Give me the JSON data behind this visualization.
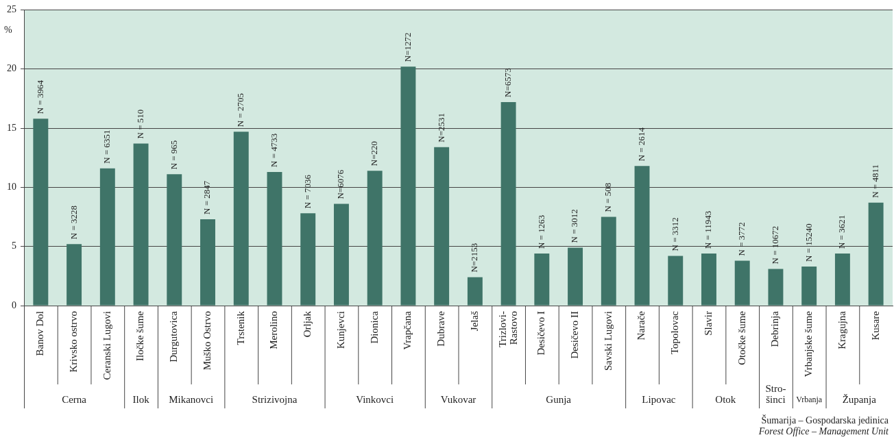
{
  "chart_data": {
    "type": "bar",
    "categories": [
      "Banov Dol",
      "Krivsko ostrvo",
      "Ceranski Lugovi",
      "Iločke šume",
      "Durgutovica",
      "Muško Ostrvo",
      "Trstenik",
      "Merolino",
      "Orljak",
      "Kunjevci",
      "Dionica",
      "Vrapčana",
      "Dubrave",
      "Jelaš",
      "Trizlovi-\nRastovo",
      "Desičevo I",
      "Desičevo II",
      "Savski Lugovi",
      "Narače",
      "Topolovac",
      "Slavir",
      "Otočke šume",
      "Debrinja",
      "Vrbanjske šume",
      "Kragujna",
      "Kusare"
    ],
    "values": [
      15.8,
      5.2,
      11.6,
      13.7,
      11.1,
      7.3,
      14.7,
      11.3,
      7.8,
      8.6,
      11.4,
      20.2,
      13.4,
      2.4,
      17.2,
      4.4,
      4.9,
      7.5,
      11.8,
      4.2,
      4.4,
      3.8,
      3.1,
      3.3,
      4.4,
      8.7
    ],
    "color": "#3f7468",
    "ylim": [
      0,
      25
    ],
    "yticks": [
      0,
      5,
      10,
      15,
      20,
      25
    ],
    "grid": "y",
    "legend": false,
    "ylabel": "%",
    "xlabel": "Šumarija – Gospodarska jedinica\nForest Office – Management Unit",
    "annotations": [
      {
        "text": "N = 3964",
        "x": "Banov Dol",
        "y": 15.8
      },
      {
        "text": "N = 3228",
        "x": "Krivsko ostrvo",
        "y": 5.2
      },
      {
        "text": "N = 6351",
        "x": "Ceranski Lugovi",
        "y": 11.6
      },
      {
        "text": "N = 510",
        "x": "Iločke šume",
        "y": 13.7
      },
      {
        "text": "N = 965",
        "x": "Durgutovica",
        "y": 11.1
      },
      {
        "text": "N = 2847",
        "x": "Muško Ostrvo",
        "y": 7.3
      },
      {
        "text": "N = 2705",
        "x": "Trstenik",
        "y": 14.7
      },
      {
        "text": "N = 4733",
        "x": "Merolino",
        "y": 11.3
      },
      {
        "text": "N = 7036",
        "x": "Orljak",
        "y": 7.8
      },
      {
        "text": "N=6076",
        "x": "Kunjevci",
        "y": 8.6
      },
      {
        "text": "N=220",
        "x": "Dionica",
        "y": 11.4
      },
      {
        "text": "N=1272",
        "x": "Vrapčana",
        "y": 20.2
      },
      {
        "text": "N=2531",
        "x": "Dubrave",
        "y": 13.4
      },
      {
        "text": "N=2153",
        "x": "Jelaš",
        "y": 2.4
      },
      {
        "text": "N=6573",
        "x": "Trizlovi-\nRastovo",
        "y": 17.2
      },
      {
        "text": "N = 1263",
        "x": "Desičevo I",
        "y": 4.4
      },
      {
        "text": "N = 3012",
        "x": "Desičevo II",
        "y": 4.9
      },
      {
        "text": "N = 508",
        "x": "Savski Lugovi",
        "y": 7.5
      },
      {
        "text": "N = 2614",
        "x": "Narače",
        "y": 11.8
      },
      {
        "text": "N = 3312",
        "x": "Topolovac",
        "y": 4.2
      },
      {
        "text": "N = 11943",
        "x": "Slavir",
        "y": 4.4
      },
      {
        "text": "N = 3772",
        "x": "Otočke šume",
        "y": 3.8
      },
      {
        "text": "N = 10672",
        "x": "Debrinja",
        "y": 3.1
      },
      {
        "text": "N = 15240",
        "x": "Vrbanjske šume",
        "y": 3.3
      },
      {
        "text": "N = 3621",
        "x": "Kragujna",
        "y": 4.4
      },
      {
        "text": "N = 4811",
        "x": "Kusare",
        "y": 8.7
      },
      "Cerna",
      "Ilok",
      "Mikanovci",
      "Strizivojna",
      "Vinkovci",
      "Vukovar",
      "Gunja",
      "Lipovac",
      "Otok",
      "Stro-\nšinci",
      "Vrbanja",
      "Županja"
    ]
  }
}
